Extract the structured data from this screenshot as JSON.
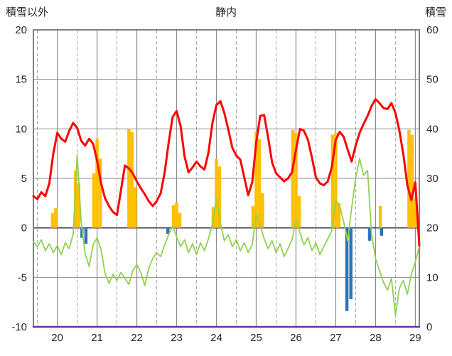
{
  "header": {
    "left_axis_title": "積雪以外",
    "chart_title": "静内",
    "right_axis_title": "積雪"
  },
  "chart_data": {
    "type": "line+bar",
    "title": "静内",
    "station": "静内",
    "x_axis": {
      "min": 19.4,
      "max": 29.1,
      "tick_values": [
        20,
        21,
        22,
        23,
        24,
        25,
        26,
        27,
        28,
        29
      ],
      "tick_labels": [
        "20",
        "21",
        "22",
        "23",
        "24",
        "25",
        "26",
        "27",
        "28",
        "29"
      ],
      "solid_gridlines": [
        20,
        21,
        22,
        23,
        24,
        25,
        26,
        27,
        28,
        29
      ],
      "dashed_gridlines": [
        19.5,
        20.5,
        21.5,
        22.5,
        23.5,
        24.5,
        25.5,
        26.5,
        27.5,
        28.5
      ]
    },
    "left_axis": {
      "title": "積雪以外",
      "min": -10,
      "max": 20,
      "ticks": [
        20,
        15,
        10,
        5,
        0,
        -5,
        -10
      ]
    },
    "right_axis": {
      "title": "積雪",
      "min": 0,
      "max": 60,
      "ticks": [
        60,
        50,
        40,
        30,
        20,
        10,
        0
      ]
    },
    "style": {
      "background": "#ffffff",
      "grid_color": "#8c8c8c",
      "dashed_color": "#a6a6a6",
      "zero_color": "#404040",
      "border_color": "#808080",
      "tick_color": "#262626",
      "bar_width": 4.5
    },
    "series": [
      {
        "name": "orange-bars",
        "type": "bar",
        "color": "#FFC000",
        "axis": "left",
        "points": [
          {
            "x": 19.88,
            "v": 1.5
          },
          {
            "x": 19.96,
            "v": 2.0
          },
          {
            "x": 20.46,
            "v": 5.8
          },
          {
            "x": 20.54,
            "v": 4.5
          },
          {
            "x": 20.92,
            "v": 5.5
          },
          {
            "x": 21.0,
            "v": 9.0
          },
          {
            "x": 21.08,
            "v": 7.0
          },
          {
            "x": 21.8,
            "v": 10.0
          },
          {
            "x": 21.88,
            "v": 9.7
          },
          {
            "x": 21.96,
            "v": 4.1
          },
          {
            "x": 22.92,
            "v": 2.3
          },
          {
            "x": 23.0,
            "v": 2.6
          },
          {
            "x": 23.08,
            "v": 1.5
          },
          {
            "x": 23.92,
            "v": 2.1
          },
          {
            "x": 24.0,
            "v": 7.0
          },
          {
            "x": 24.08,
            "v": 6.2
          },
          {
            "x": 24.92,
            "v": 2.2
          },
          {
            "x": 25.0,
            "v": 9.7
          },
          {
            "x": 25.08,
            "v": 9.0
          },
          {
            "x": 25.16,
            "v": 3.5
          },
          {
            "x": 25.92,
            "v": 9.9
          },
          {
            "x": 26.0,
            "v": 9.6
          },
          {
            "x": 26.08,
            "v": 3.2
          },
          {
            "x": 26.92,
            "v": 9.4
          },
          {
            "x": 27.0,
            "v": 9.6
          },
          {
            "x": 27.08,
            "v": 2.5
          },
          {
            "x": 28.12,
            "v": 2.2
          },
          {
            "x": 28.84,
            "v": 9.9
          },
          {
            "x": 28.92,
            "v": 9.4
          },
          {
            "x": 29.0,
            "v": 3.0
          }
        ]
      },
      {
        "name": "blue-bars",
        "type": "bar",
        "color": "#2E75B6",
        "axis": "left",
        "points": [
          {
            "x": 20.62,
            "v": -1.0
          },
          {
            "x": 20.72,
            "v": -1.6
          },
          {
            "x": 22.78,
            "v": -0.6
          },
          {
            "x": 27.28,
            "v": -8.4
          },
          {
            "x": 27.38,
            "v": -7.2
          },
          {
            "x": 27.85,
            "v": -1.3
          },
          {
            "x": 28.15,
            "v": -0.8
          }
        ]
      },
      {
        "name": "green-line",
        "type": "line",
        "color": "#92D050",
        "width": 1.8,
        "axis": "left",
        "x_start": 19.4,
        "x_step": 0.1,
        "values": [
          -1.4,
          -1.9,
          -1.2,
          -2.3,
          -1.6,
          -2.5,
          -1.8,
          -2.7,
          -1.5,
          -2.1,
          -0.6,
          7.4,
          0.6,
          -2.6,
          -3.9,
          -1.7,
          -1.0,
          -2.2,
          -4.6,
          -5.6,
          -4.7,
          -5.3,
          -4.5,
          -5.1,
          -5.7,
          -4.3,
          -3.7,
          -4.5,
          -5.8,
          -4.1,
          -3.1,
          -2.5,
          -2.9,
          -1.7,
          -0.7,
          0.2,
          -0.9,
          -1.9,
          -1.2,
          -2.5,
          -1.6,
          -2.7,
          -1.5,
          -2.3,
          -1.1,
          0.4,
          3.0,
          0.5,
          -1.3,
          -0.7,
          -1.9,
          -1.2,
          -2.3,
          -1.5,
          -2.5,
          -1.7,
          1.4,
          0.2,
          -1.1,
          -2.1,
          -1.3,
          -2.5,
          -1.6,
          -2.9,
          -2.1,
          -1.2,
          0.8,
          -0.5,
          -1.7,
          -1.0,
          -2.3,
          -1.5,
          -2.7,
          -1.9,
          -1.1,
          -0.3,
          2.8,
          2.2,
          0.6,
          -1.3,
          2.0,
          5.0,
          7.0,
          5.3,
          5.8,
          -0.6,
          -3.1,
          -4.3,
          -5.5,
          -6.3,
          -5.1,
          -8.8,
          -6.1,
          -5.3,
          -6.7,
          -4.7,
          -3.4,
          -1.9
        ]
      },
      {
        "name": "red-line",
        "type": "line",
        "color": "#FF0000",
        "width": 3,
        "axis": "left",
        "x_start": 19.4,
        "x_step": 0.1,
        "values": [
          3.2,
          2.9,
          3.6,
          3.2,
          4.5,
          7.5,
          9.6,
          9.0,
          8.7,
          9.8,
          10.6,
          10.1,
          8.8,
          8.3,
          9.0,
          8.5,
          6.8,
          4.5,
          3.0,
          2.2,
          1.6,
          1.3,
          3.8,
          6.3,
          6.0,
          5.5,
          4.7,
          4.0,
          3.4,
          2.7,
          2.2,
          2.7,
          3.5,
          5.6,
          8.6,
          11.2,
          11.8,
          10.3,
          7.2,
          5.6,
          6.1,
          6.7,
          6.2,
          5.9,
          7.6,
          10.6,
          12.4,
          12.8,
          11.6,
          9.9,
          8.1,
          7.3,
          6.9,
          5.1,
          3.3,
          4.6,
          8.6,
          11.3,
          11.4,
          9.1,
          6.6,
          5.5,
          5.1,
          4.7,
          5.0,
          5.6,
          7.9,
          10.0,
          9.8,
          8.9,
          7.1,
          5.1,
          4.5,
          4.3,
          4.7,
          6.1,
          8.9,
          9.7,
          9.2,
          7.9,
          6.7,
          8.3,
          9.6,
          10.5,
          11.3,
          12.3,
          13.0,
          12.6,
          12.1,
          12.0,
          12.6,
          11.6,
          9.8,
          7.4,
          4.3,
          2.8,
          4.6,
          -1.8
        ]
      },
      {
        "name": "purple-snow-line",
        "type": "line",
        "color": "#7030A0",
        "width": 2.5,
        "axis": "right",
        "constant": 0
      }
    ]
  }
}
